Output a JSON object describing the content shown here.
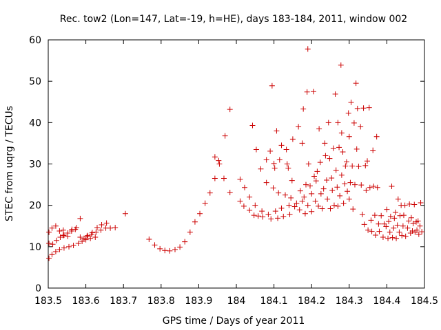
{
  "chart_data": {
    "type": "scatter",
    "title": "Rec. tow2 (Lon=147, Lat=-19, h=HE), days 183-184, 2011, window 002",
    "xlabel": "GPS time / Days of year 2011",
    "ylabel": "STEC from uqrg / TECUs",
    "xlim": [
      183.5,
      184.5
    ],
    "ylim": [
      0,
      60
    ],
    "xticks": [
      183.5,
      183.6,
      183.7,
      183.8,
      183.9,
      184.0,
      184.1,
      184.2,
      184.3,
      184.4,
      184.5
    ],
    "xtick_labels": [
      "183.5",
      "183.6",
      "183.7",
      "183.8",
      "183.9",
      "184",
      "184.1",
      "184.2",
      "184.3",
      "184.4",
      "184.5"
    ],
    "yticks": [
      0,
      10,
      20,
      30,
      40,
      50,
      60
    ],
    "ytick_labels": [
      "0",
      "10",
      "20",
      "30",
      "40",
      "50",
      "60"
    ],
    "grid": false,
    "legend": "none",
    "marker": "+",
    "marker_color": "#cc0000",
    "series": [
      {
        "name": "STEC",
        "points": [
          [
            183.502,
            7.2
          ],
          [
            183.51,
            8.1
          ],
          [
            183.52,
            8.8
          ],
          [
            183.53,
            9.3
          ],
          [
            183.542,
            9.7
          ],
          [
            183.555,
            10.0
          ],
          [
            183.567,
            10.3
          ],
          [
            183.58,
            10.8
          ],
          [
            183.59,
            11.3
          ],
          [
            183.6,
            11.7
          ],
          [
            183.612,
            12.0
          ],
          [
            183.625,
            12.3
          ],
          [
            183.502,
            10.8
          ],
          [
            183.512,
            10.6
          ],
          [
            183.522,
            11.5
          ],
          [
            183.532,
            12.3
          ],
          [
            183.542,
            12.8
          ],
          [
            183.552,
            13.3
          ],
          [
            183.562,
            13.8
          ],
          [
            183.572,
            14.2
          ],
          [
            183.585,
            12.3
          ],
          [
            183.595,
            12.0
          ],
          [
            183.605,
            12.7
          ],
          [
            183.615,
            13.0
          ],
          [
            183.627,
            13.5
          ],
          [
            183.64,
            14.0
          ],
          [
            183.653,
            14.5
          ],
          [
            183.665,
            14.5
          ],
          [
            183.678,
            14.6
          ],
          [
            183.705,
            18.0
          ],
          [
            183.502,
            13.5
          ],
          [
            183.51,
            14.5
          ],
          [
            183.52,
            15.0
          ],
          [
            183.53,
            13.8
          ],
          [
            183.54,
            12.7
          ],
          [
            183.552,
            12.5
          ],
          [
            183.563,
            14.2
          ],
          [
            183.575,
            14.6
          ],
          [
            183.585,
            16.8
          ],
          [
            183.603,
            12.5
          ],
          [
            183.617,
            13.4
          ],
          [
            183.63,
            14.6
          ],
          [
            183.642,
            15.3
          ],
          [
            183.655,
            15.7
          ],
          [
            183.54,
            14.0
          ],
          [
            183.768,
            11.8
          ],
          [
            183.783,
            10.4
          ],
          [
            183.797,
            9.5
          ],
          [
            183.81,
            9.1
          ],
          [
            183.823,
            9.0
          ],
          [
            183.837,
            9.3
          ],
          [
            183.85,
            9.9
          ],
          [
            183.863,
            11.2
          ],
          [
            183.877,
            13.5
          ],
          [
            183.89,
            16.0
          ],
          [
            183.903,
            18.0
          ],
          [
            183.917,
            20.5
          ],
          [
            183.93,
            23.0
          ],
          [
            183.943,
            26.5
          ],
          [
            183.943,
            31.7
          ],
          [
            183.953,
            30.8
          ],
          [
            183.955,
            30.0
          ],
          [
            183.967,
            26.5
          ],
          [
            183.97,
            36.8
          ],
          [
            183.983,
            43.2
          ],
          [
            183.983,
            23.1
          ],
          [
            184.01,
            26.3
          ],
          [
            184.01,
            21.0
          ],
          [
            184.02,
            19.8
          ],
          [
            184.022,
            24.3
          ],
          [
            184.035,
            18.8
          ],
          [
            184.035,
            22.0
          ],
          [
            184.043,
            39.3
          ],
          [
            184.047,
            17.6
          ],
          [
            184.05,
            20.0
          ],
          [
            184.053,
            33.5
          ],
          [
            184.058,
            17.4
          ],
          [
            184.065,
            28.8
          ],
          [
            184.068,
            18.6
          ],
          [
            184.07,
            17.2
          ],
          [
            184.08,
            25.5
          ],
          [
            184.08,
            31.0
          ],
          [
            184.085,
            17.8
          ],
          [
            184.09,
            33.1
          ],
          [
            184.092,
            16.7
          ],
          [
            184.095,
            48.9
          ],
          [
            184.098,
            24.2
          ],
          [
            184.1,
            30.1
          ],
          [
            184.102,
            29.0
          ],
          [
            184.104,
            18.6
          ],
          [
            184.107,
            38.0
          ],
          [
            184.11,
            16.9
          ],
          [
            184.112,
            23.0
          ],
          [
            184.115,
            31.0
          ],
          [
            184.12,
            19.3
          ],
          [
            184.12,
            34.5
          ],
          [
            184.125,
            17.3
          ],
          [
            184.13,
            22.5
          ],
          [
            184.133,
            33.5
          ],
          [
            184.135,
            30.0
          ],
          [
            184.138,
            29.0
          ],
          [
            184.14,
            20.0
          ],
          [
            184.142,
            17.8
          ],
          [
            184.145,
            21.8
          ],
          [
            184.148,
            26.0
          ],
          [
            184.15,
            36.0
          ],
          [
            184.155,
            19.7
          ],
          [
            184.16,
            20.5
          ],
          [
            184.165,
            39.0
          ],
          [
            184.168,
            18.9
          ],
          [
            184.17,
            23.5
          ],
          [
            184.175,
            35.0
          ],
          [
            184.175,
            21.0
          ],
          [
            184.178,
            43.3
          ],
          [
            184.18,
            22.0
          ],
          [
            184.183,
            18.0
          ],
          [
            184.185,
            25.0
          ],
          [
            184.188,
            47.4
          ],
          [
            184.19,
            57.8
          ],
          [
            184.19,
            20.0
          ],
          [
            184.192,
            30.0
          ],
          [
            184.196,
            24.7
          ],
          [
            184.2,
            22.8
          ],
          [
            184.2,
            18.5
          ],
          [
            184.205,
            47.5
          ],
          [
            184.207,
            27.0
          ],
          [
            184.21,
            21.0
          ],
          [
            184.212,
            25.9
          ],
          [
            184.215,
            28.2
          ],
          [
            184.218,
            19.8
          ],
          [
            184.22,
            38.5
          ],
          [
            184.223,
            30.4
          ],
          [
            184.225,
            22.8
          ],
          [
            184.228,
            19.2
          ],
          [
            184.232,
            24.0
          ],
          [
            184.235,
            35.0
          ],
          [
            184.237,
            32.0
          ],
          [
            184.24,
            26.1
          ],
          [
            184.242,
            21.5
          ],
          [
            184.245,
            40.0
          ],
          [
            184.248,
            31.3
          ],
          [
            184.25,
            19.2
          ],
          [
            184.253,
            26.6
          ],
          [
            184.255,
            23.6
          ],
          [
            184.258,
            33.8
          ],
          [
            184.26,
            20.0
          ],
          [
            184.263,
            46.9
          ],
          [
            184.265,
            28.5
          ],
          [
            184.268,
            24.4
          ],
          [
            184.27,
            40.0
          ],
          [
            184.27,
            19.8
          ],
          [
            184.273,
            34.0
          ],
          [
            184.275,
            22.3
          ],
          [
            184.278,
            53.9
          ],
          [
            184.28,
            37.5
          ],
          [
            184.28,
            27.3
          ],
          [
            184.283,
            32.9
          ],
          [
            184.285,
            20.5
          ],
          [
            184.288,
            25.2
          ],
          [
            184.29,
            29.5
          ],
          [
            184.293,
            30.5
          ],
          [
            184.295,
            23.4
          ],
          [
            184.298,
            42.3
          ],
          [
            184.3,
            36.6
          ],
          [
            184.3,
            21.5
          ],
          [
            184.303,
            25.5
          ],
          [
            184.305,
            44.9
          ],
          [
            184.308,
            29.5
          ],
          [
            184.31,
            19.1
          ],
          [
            184.313,
            39.9
          ],
          [
            184.315,
            25.0
          ],
          [
            184.318,
            49.5
          ],
          [
            184.32,
            33.6
          ],
          [
            184.322,
            43.4
          ],
          [
            184.325,
            29.4
          ],
          [
            184.33,
            39.0
          ],
          [
            184.332,
            24.9
          ],
          [
            184.335,
            17.8
          ],
          [
            184.338,
            43.5
          ],
          [
            184.34,
            15.4
          ],
          [
            184.343,
            29.6
          ],
          [
            184.345,
            23.6
          ],
          [
            184.348,
            30.7
          ],
          [
            184.35,
            14.0
          ],
          [
            184.353,
            43.6
          ],
          [
            184.355,
            24.3
          ],
          [
            184.358,
            16.4
          ],
          [
            184.36,
            13.7
          ],
          [
            184.363,
            33.3
          ],
          [
            184.365,
            24.6
          ],
          [
            184.368,
            17.6
          ],
          [
            184.37,
            12.8
          ],
          [
            184.373,
            36.6
          ],
          [
            184.375,
            24.3
          ],
          [
            184.378,
            15.5
          ],
          [
            184.38,
            13.7
          ],
          [
            184.385,
            17.5
          ],
          [
            184.39,
            12.3
          ],
          [
            184.393,
            15.5
          ],
          [
            184.398,
            14.9
          ],
          [
            184.4,
            19.0
          ],
          [
            184.403,
            12.0
          ],
          [
            184.405,
            16.1
          ],
          [
            184.408,
            13.5
          ],
          [
            184.41,
            17.3
          ],
          [
            184.413,
            24.6
          ],
          [
            184.415,
            12.2
          ],
          [
            184.418,
            14.5
          ],
          [
            184.42,
            16.9
          ],
          [
            184.423,
            18.3
          ],
          [
            184.425,
            12.0
          ],
          [
            184.428,
            15.2
          ],
          [
            184.43,
            21.5
          ],
          [
            184.433,
            13.5
          ],
          [
            184.435,
            17.5
          ],
          [
            184.438,
            20.0
          ],
          [
            184.44,
            12.7
          ],
          [
            184.443,
            15.0
          ],
          [
            184.445,
            17.6
          ],
          [
            184.448,
            20.0
          ],
          [
            184.45,
            12.5
          ],
          [
            184.455,
            14.5
          ],
          [
            184.458,
            16.2
          ],
          [
            184.46,
            20.3
          ],
          [
            184.463,
            13.3
          ],
          [
            184.465,
            17.0
          ],
          [
            184.468,
            13.8
          ],
          [
            184.47,
            15.6
          ],
          [
            184.473,
            20.2
          ],
          [
            184.475,
            13.5
          ],
          [
            184.478,
            16.0
          ],
          [
            184.48,
            14.0
          ],
          [
            184.483,
            16.2
          ],
          [
            184.485,
            13.0
          ],
          [
            184.488,
            15.0
          ],
          [
            184.49,
            20.6
          ],
          [
            184.493,
            13.6
          ]
        ]
      }
    ]
  }
}
